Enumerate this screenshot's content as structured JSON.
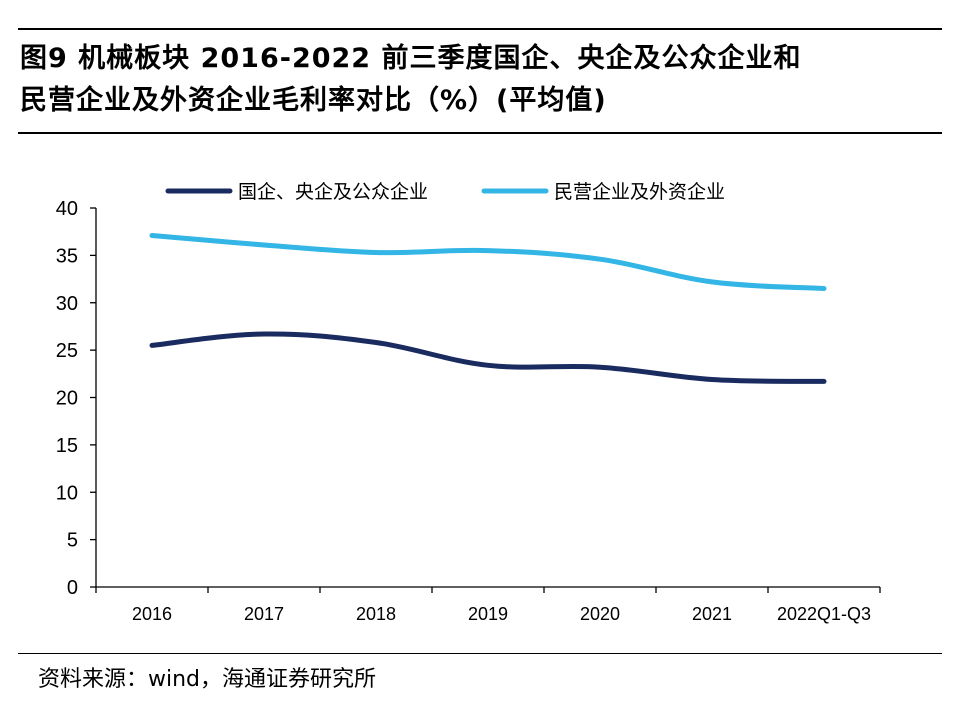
{
  "title": {
    "line1": "图9  机械板块 2016-2022 前三季度国企、央企及公众企业和",
    "line2": "民营企业及外资企业毛利率对比（%）(平均值)"
  },
  "source": "资料来源：wind，海通证券研究所",
  "chart_data": {
    "type": "line",
    "title": "机械板块 2016-2022 前三季度国企、央企及公众企业和民营企业及外资企业毛利率对比（%）(平均值)",
    "xlabel": "",
    "ylabel": "",
    "ylim": [
      0,
      40
    ],
    "yticks": [
      0,
      5,
      10,
      15,
      20,
      25,
      30,
      35,
      40
    ],
    "categories": [
      "2016",
      "2017",
      "2018",
      "2019",
      "2020",
      "2021",
      "2022Q1-Q3"
    ],
    "legend_position": "top",
    "series": [
      {
        "name": "国企、央企及公众企业",
        "color": "#1a2b5f",
        "values": [
          25.5,
          26.7,
          25.8,
          23.4,
          23.2,
          21.9,
          21.7
        ]
      },
      {
        "name": "民营企业及外资企业",
        "color": "#33b5e5",
        "values": [
          37.1,
          36.1,
          35.3,
          35.5,
          34.6,
          32.2,
          31.5
        ]
      }
    ]
  }
}
